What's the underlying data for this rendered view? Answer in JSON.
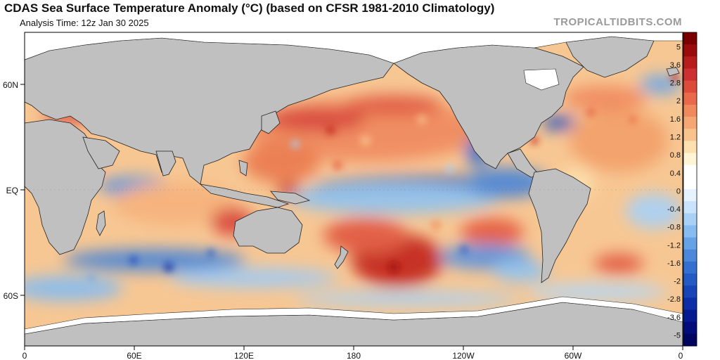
{
  "header": {
    "title": "CDAS Sea Surface Temperature Anomaly (°C) (based on CFSR 1981-2010 Climatology)",
    "analysis_time": "Analysis Time: 12z Jan 30 2025",
    "brand": "TROPICALTIDBITS.COM"
  },
  "map": {
    "lat_labels": [
      "60N",
      "EQ",
      "60S"
    ],
    "lon_labels": [
      "0",
      "60E",
      "120E",
      "180",
      "120W",
      "60W",
      "0"
    ],
    "land_color": "#c0c0c0",
    "ice_color": "#ffffff",
    "neutral_color": "#ffffff"
  },
  "colorbar": {
    "labels": [
      "5",
      "3.6",
      "2.8",
      "2",
      "1.6",
      "1.2",
      "0.8",
      "0.4",
      "0",
      "-0.4",
      "-0.8",
      "-1.2",
      "-1.6",
      "-2",
      "-2.8",
      "-3.6",
      "-5"
    ],
    "colors": [
      "#7a0000",
      "#9c0b0b",
      "#b81d1d",
      "#cc3030",
      "#dd4b3b",
      "#e86a4a",
      "#f0895b",
      "#f5a673",
      "#f9c38e",
      "#fce0ad",
      "#fff4d6",
      "#ffffff",
      "#ffffff",
      "#e6f3ff",
      "#c8e3fb",
      "#a8d1f6",
      "#86bcef",
      "#66a3e5",
      "#4b88da",
      "#3470cf",
      "#245ac3",
      "#1744b6",
      "#0d2ea6",
      "#071b91",
      "#030c79",
      "#010560"
    ]
  }
}
